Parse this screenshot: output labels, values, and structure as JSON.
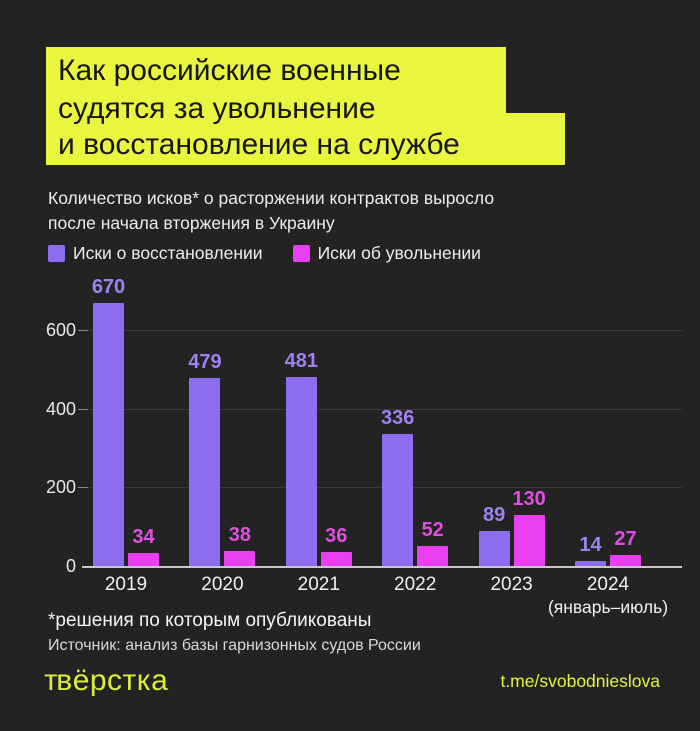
{
  "title": {
    "lines": [
      "Как российские военные",
      "судятся за увольнение",
      "и восстановление на службе"
    ]
  },
  "subtitle": {
    "line1": "Количество исков* о расторжении контрактов выросло",
    "line2": "после начала вторжения в Украину"
  },
  "legend": {
    "items": [
      {
        "label": "Иски о восстановлении",
        "color": "#8d6cf0"
      },
      {
        "label": "Иски об увольнении",
        "color": "#e93ef2"
      }
    ]
  },
  "chart_data": {
    "type": "bar",
    "categories": [
      "2019",
      "2020",
      "2021",
      "2022",
      "2023",
      "2024"
    ],
    "category_sublabels": [
      "",
      "",
      "",
      "",
      "",
      "(январь–июль)"
    ],
    "series": [
      {
        "name": "Иски о восстановлении",
        "color": "#8d6cf0",
        "label_color": "#9d82f2",
        "values": [
          670,
          479,
          481,
          336,
          89,
          14
        ]
      },
      {
        "name": "Иски об увольнении",
        "color": "#e93ef2",
        "label_color": "#df4fdf",
        "values": [
          34,
          38,
          36,
          52,
          130,
          27
        ]
      }
    ],
    "title": "Как российские военные судятся за увольнение и восстановление на службе",
    "xlabel": "",
    "ylabel": "",
    "ylim": [
      0,
      700
    ],
    "yticks": [
      0,
      200,
      400,
      600
    ],
    "grid": "horizontal",
    "legend_position": "top",
    "value_labels": true
  },
  "footnotes": {
    "asterisk": "*решения по которым опубликованы",
    "source": "Источник: анализ базы гарнизонных судов России"
  },
  "footer": {
    "logo": "вёрстка",
    "link": "t.me/svobodnieslova"
  },
  "colors": {
    "background": "#232323",
    "highlight_yellow": "#e9f53f",
    "purple_bar": "#8d6cf0",
    "magenta_bar": "#e93ef2",
    "text_light": "#ededed",
    "gridline": "#3a3a3a",
    "axis_line": "#c8c8c8"
  }
}
